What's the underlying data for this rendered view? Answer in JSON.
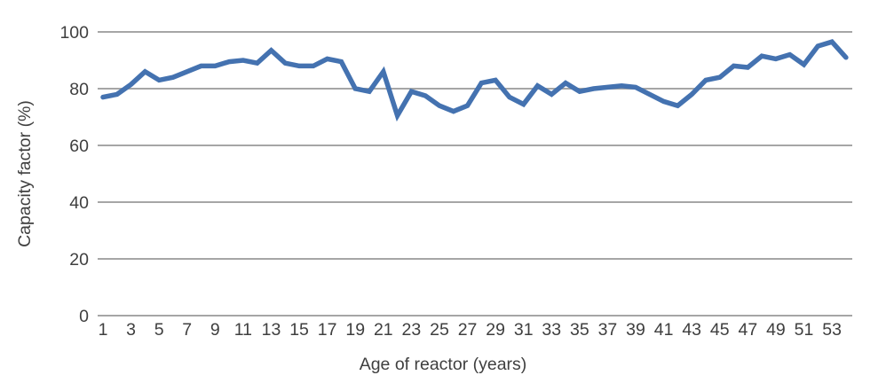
{
  "chart_data": {
    "type": "line",
    "title": "",
    "xlabel": "Age of reactor (years)",
    "ylabel": "Capacity factor (%)",
    "x": [
      1,
      2,
      3,
      4,
      5,
      6,
      7,
      8,
      9,
      10,
      11,
      12,
      13,
      14,
      15,
      16,
      17,
      18,
      19,
      20,
      21,
      22,
      23,
      24,
      25,
      26,
      27,
      28,
      29,
      30,
      31,
      32,
      33,
      34,
      35,
      36,
      37,
      38,
      39,
      40,
      41,
      42,
      43,
      44,
      45,
      46,
      47,
      48,
      49,
      50,
      51,
      52,
      53,
      54
    ],
    "values": [
      77,
      78,
      81.5,
      86,
      83,
      84,
      86,
      88,
      88,
      89.5,
      90,
      89,
      93.5,
      89,
      88,
      88,
      90.5,
      89.5,
      80,
      79,
      86,
      70.5,
      79,
      77.5,
      74,
      72,
      74,
      82,
      83,
      77,
      74.5,
      81,
      78,
      82,
      79,
      80,
      80.5,
      81,
      80.5,
      78,
      75.5,
      74,
      78,
      83,
      84,
      88,
      87.5,
      91.5,
      90.5,
      92,
      88.5,
      95,
      96.5,
      91
    ],
    "x_tick_labels": [
      "1",
      "3",
      "5",
      "7",
      "9",
      "11",
      "13",
      "15",
      "17",
      "19",
      "21",
      "23",
      "25",
      "27",
      "29",
      "31",
      "33",
      "35",
      "37",
      "39",
      "41",
      "43",
      "45",
      "47",
      "49",
      "51",
      "53"
    ],
    "x_ticks": [
      1,
      3,
      5,
      7,
      9,
      11,
      13,
      15,
      17,
      19,
      21,
      23,
      25,
      27,
      29,
      31,
      33,
      35,
      37,
      39,
      41,
      43,
      45,
      47,
      49,
      51,
      53
    ],
    "y_ticks": [
      0,
      20,
      40,
      60,
      80,
      100
    ],
    "ylim": [
      0,
      100
    ],
    "xlim": [
      1,
      54
    ],
    "grid": "horizontal-only",
    "legend": "none",
    "colors": {
      "line": "#4472B0",
      "gridline": "#A6A6A6",
      "text": "#3F3F3F"
    }
  }
}
